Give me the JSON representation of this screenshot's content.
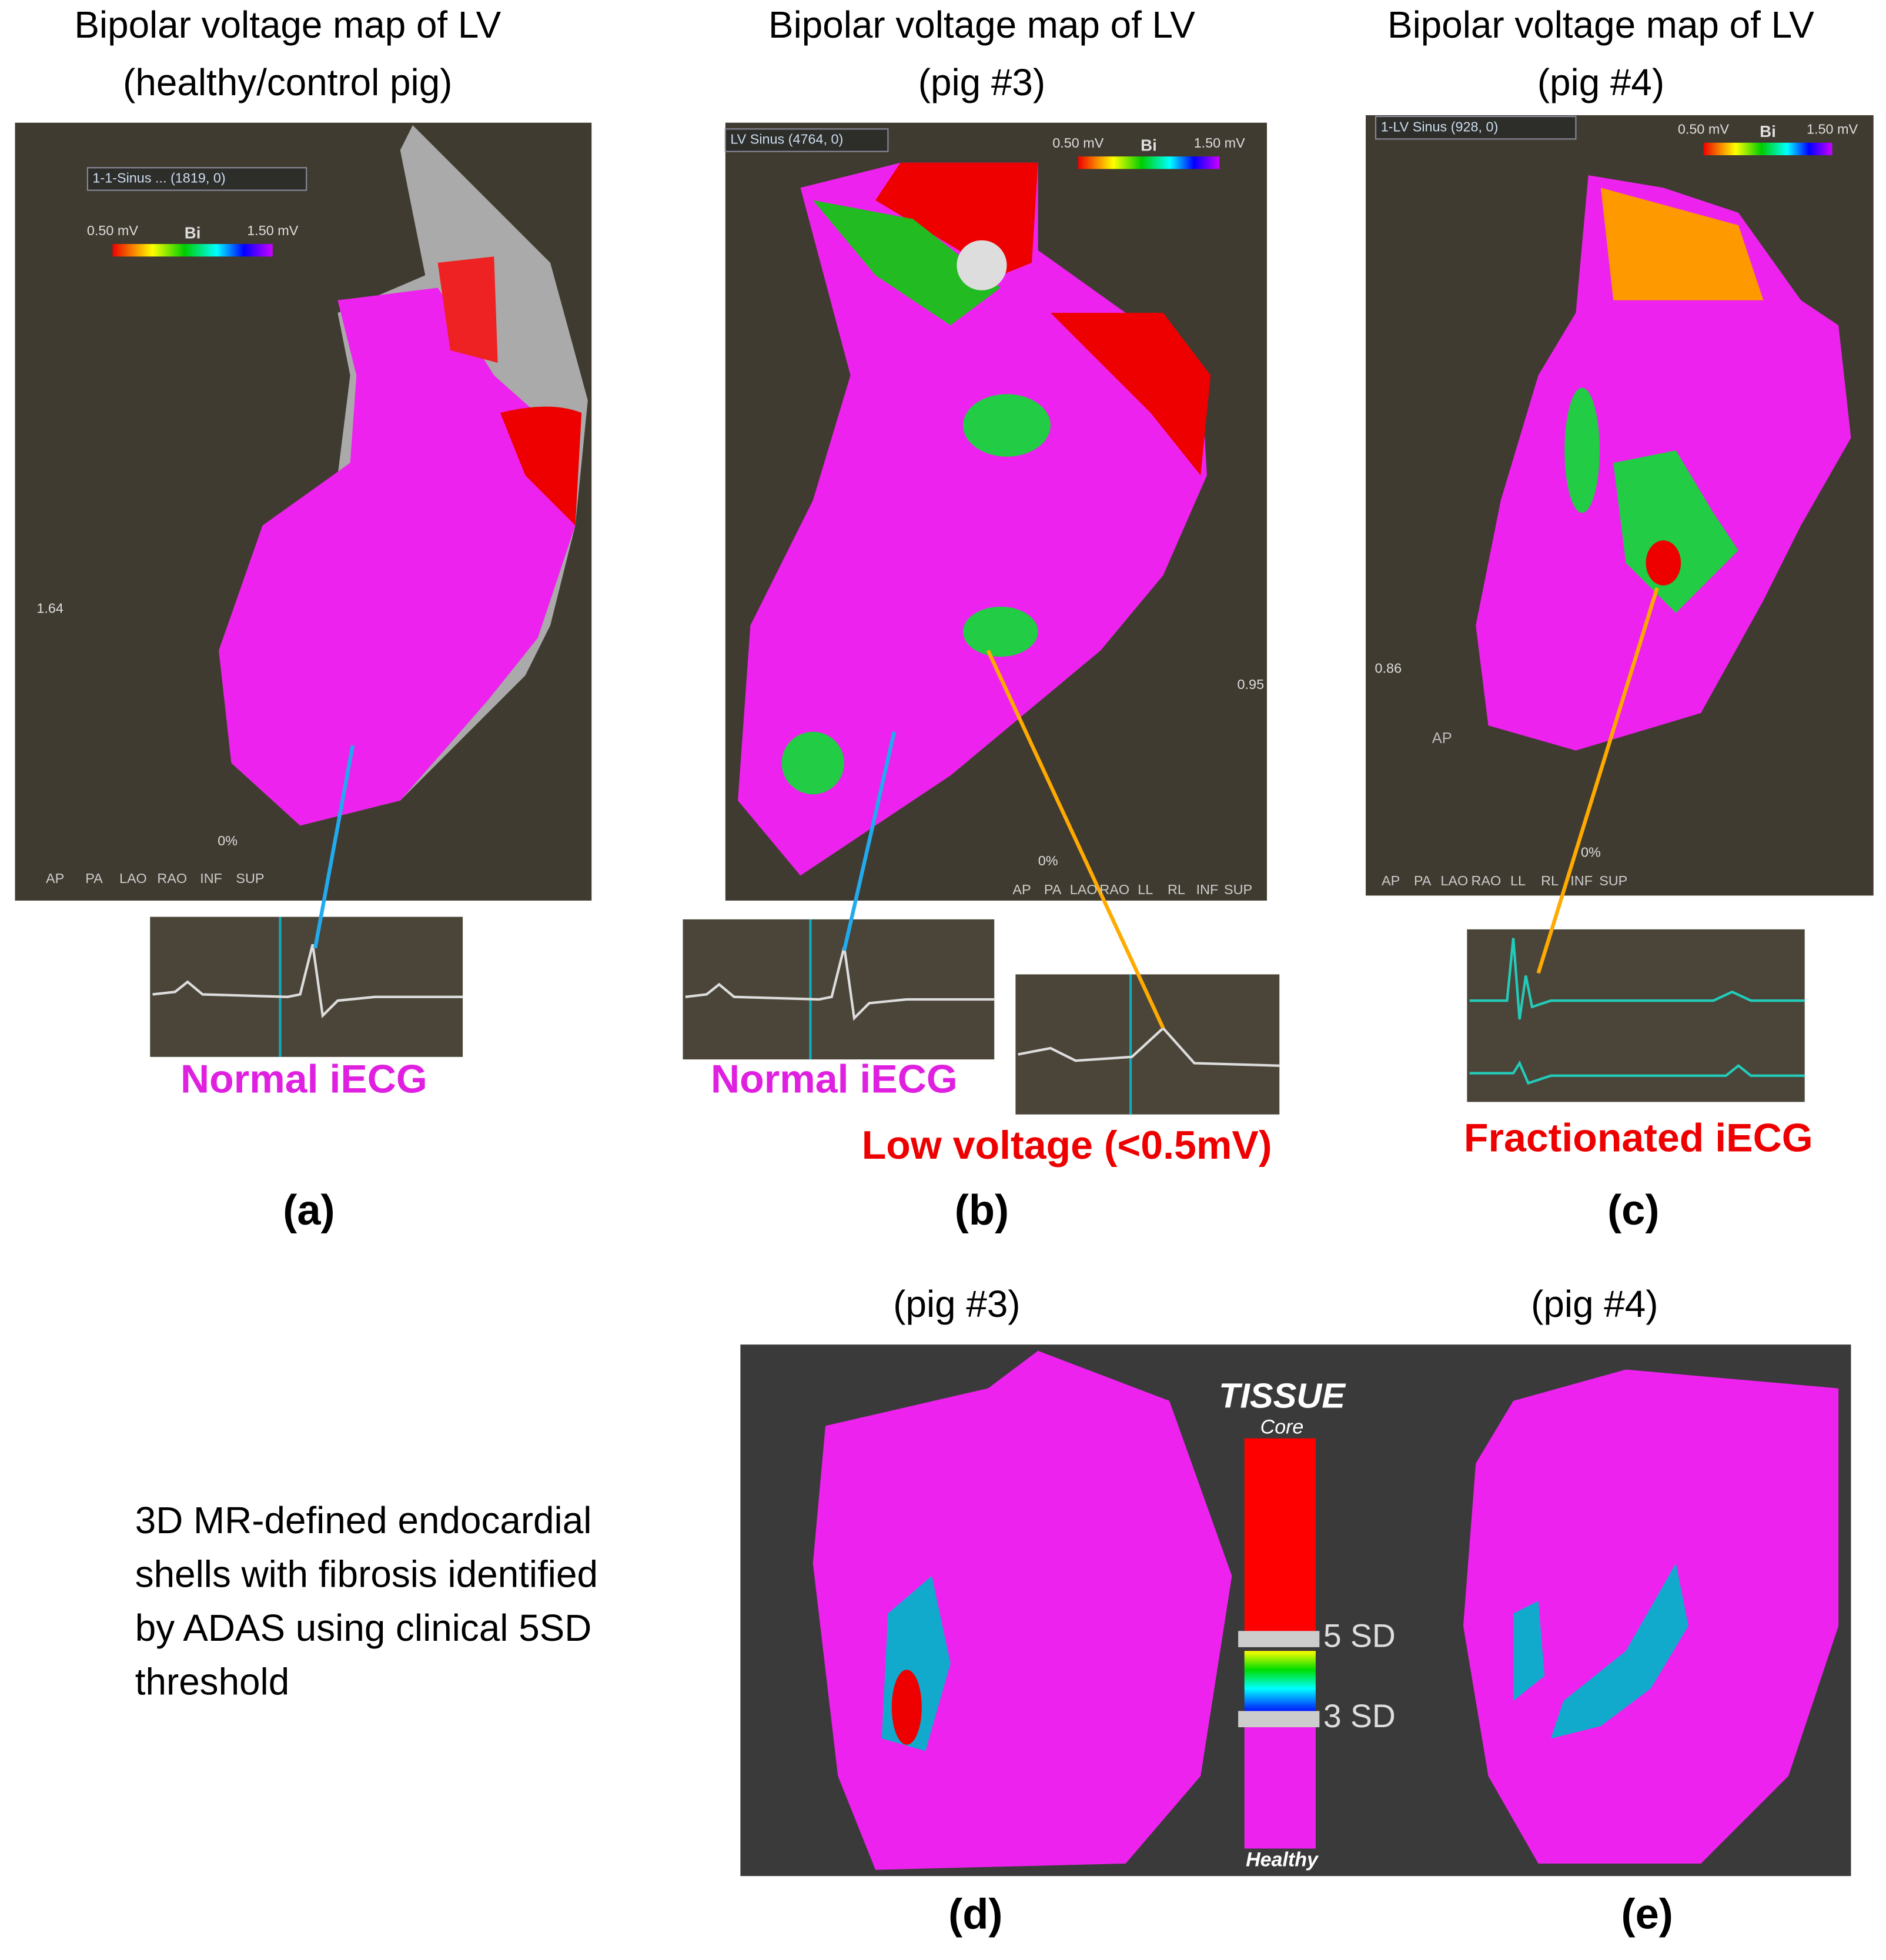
{
  "panels": [
    {
      "title": [
        "Bipolar voltage map of LV",
        "(healthy/control pig)"
      ],
      "dropdown": "1-1-Sinus ... (1819, 0)",
      "legend": {
        "min": "0.50 mV",
        "name": "Bi",
        "max": "1.50 mV"
      },
      "zoom": "1.64",
      "opacity": "0%",
      "views": [
        "AP",
        "PA",
        "LAO",
        "RAO",
        "INF",
        "SUP"
      ],
      "annotations": [
        "Normal iECG"
      ],
      "label": "(a)"
    },
    {
      "title": [
        "Bipolar voltage map of LV",
        "(pig #3)"
      ],
      "dropdown": "LV Sinus (4764, 0)",
      "legend": {
        "min": "0.50 mV",
        "name": "Bi",
        "max": "1.50 mV"
      },
      "zoom": "0.95",
      "opacity": "0%",
      "views": [
        "AP",
        "PA",
        "LAO",
        "RAO",
        "LL",
        "RL",
        "INF",
        "SUP"
      ],
      "annotations": [
        "Normal iECG",
        "Low voltage (<0.5mV)"
      ],
      "label": "(b)"
    },
    {
      "title": [
        "Bipolar voltage map of LV",
        "(pig #4)"
      ],
      "dropdown": "1-LV Sinus (928, 0)",
      "legend": {
        "min": "0.50 mV",
        "name": "Bi",
        "max": "1.50 mV"
      },
      "zoom": "0.86",
      "view_hint": "AP",
      "opacity": "0%",
      "views": [
        "AP",
        "PA",
        "LAO",
        "RAO",
        "LL",
        "RL",
        "INF",
        "SUP"
      ],
      "annotations": [
        "Fractionated iECG"
      ],
      "label": "(c)"
    }
  ],
  "mr": {
    "titles": [
      "(pig #3)",
      "(pig #4)"
    ],
    "description": [
      "3D MR-defined endocardial",
      "shells with fibrosis identified",
      "by ADAS using clinical 5SD",
      "threshold"
    ],
    "scale": {
      "title": "TISSUE",
      "top": "Core",
      "upper": "5 SD",
      "lower": "3 SD",
      "bottom": "Healthy"
    },
    "labels": [
      "(d)",
      "(e)"
    ]
  }
}
